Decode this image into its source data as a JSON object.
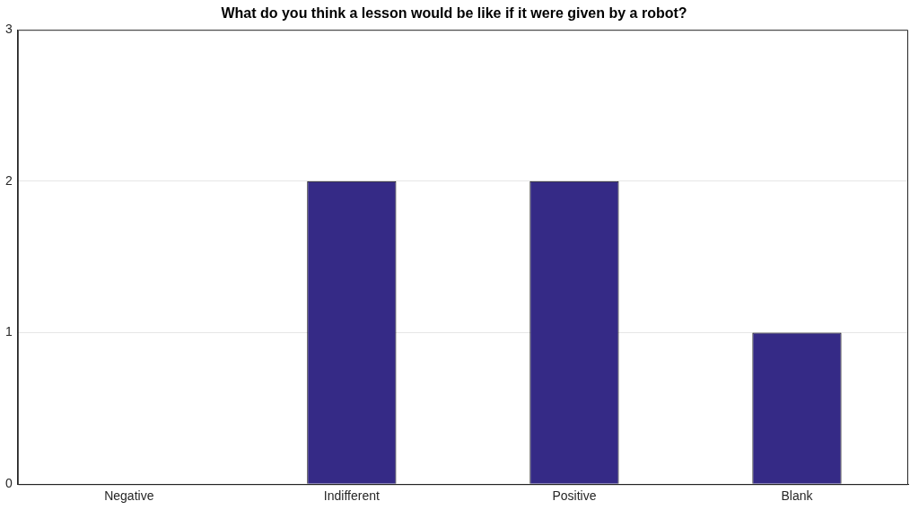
{
  "chart_data": {
    "type": "bar",
    "title": "What do you think a lesson would be like if it were given by a robot?",
    "categories": [
      "Negative",
      "Indifferent",
      "Positive",
      "Blank"
    ],
    "values": [
      0,
      2,
      2,
      1
    ],
    "color": "#352a86",
    "ylim": [
      0,
      3
    ],
    "yticks": [
      0,
      1,
      2,
      3
    ],
    "grid": "y",
    "legend": false
  }
}
